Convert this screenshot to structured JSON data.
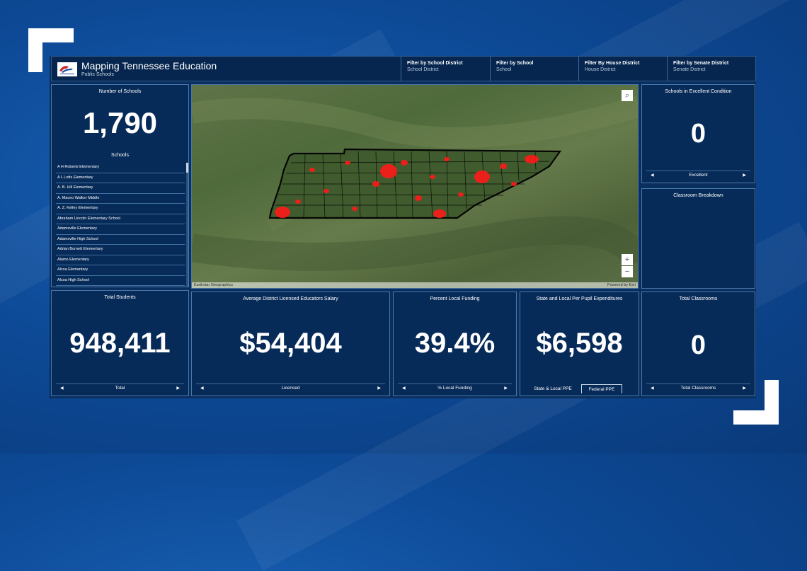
{
  "header": {
    "title": "Mapping Tennessee Education",
    "subtitle": "Public Schools",
    "filters": [
      {
        "label": "Filter by School District",
        "value": "School District"
      },
      {
        "label": "Filter by School",
        "value": "School"
      },
      {
        "label": "Filter By House District",
        "value": "House District"
      },
      {
        "label": "Filter by Senate District",
        "value": "Senate District"
      }
    ]
  },
  "schools_panel": {
    "title": "Number of Schools",
    "value": "1,790",
    "list_title": "Schools",
    "items": [
      "A H Roberts Elementary",
      "A L Lotts Elementary",
      "A. B. Hill Elementary",
      "A. Maceo Walker Middle",
      "A. Z. Kelley Elementary",
      "Abraham Lincoln Elementary School",
      "Adamsville Elementary",
      "Adamsville High School",
      "Adrian Burnett Elementary",
      "Alamo Elementary",
      "Alcoa Elementary",
      "Alcoa High School"
    ]
  },
  "map": {
    "attribution_left": "Earthstar Geographics",
    "attribution_right": "Powered by Esri",
    "zoom_in": "+",
    "zoom_out": "−"
  },
  "excellent_panel": {
    "title": "Schools in Excellent Condition",
    "value": "0",
    "pager": "Excellent"
  },
  "classroom_panel": {
    "title": "Classroom Breakdown"
  },
  "students_panel": {
    "title": "Total Students",
    "value": "948,411",
    "pager": "Total"
  },
  "salary_panel": {
    "title": "Average District Licensed Educators Salary",
    "value": "$54,404",
    "pager": "Licensed"
  },
  "funding_panel": {
    "title": "Percent Local Funding",
    "value": "39.4%",
    "pager": "% Local Funding"
  },
  "ppe_panel": {
    "title": "State and Local Per Pupil Expenditures",
    "value": "$6,598",
    "tabs": [
      "State & Local PPE",
      "Federal PPE"
    ]
  },
  "classrooms_panel": {
    "title": "Total Classrooms",
    "value": "0",
    "pager": "Total Classrooms"
  },
  "colors": {
    "background": "#0d4a97",
    "panel": "#072b58",
    "highlight": "#ff1a1a"
  },
  "icons": {
    "search": "search-icon",
    "prev": "chevron-left-icon",
    "next": "chevron-right-icon"
  }
}
